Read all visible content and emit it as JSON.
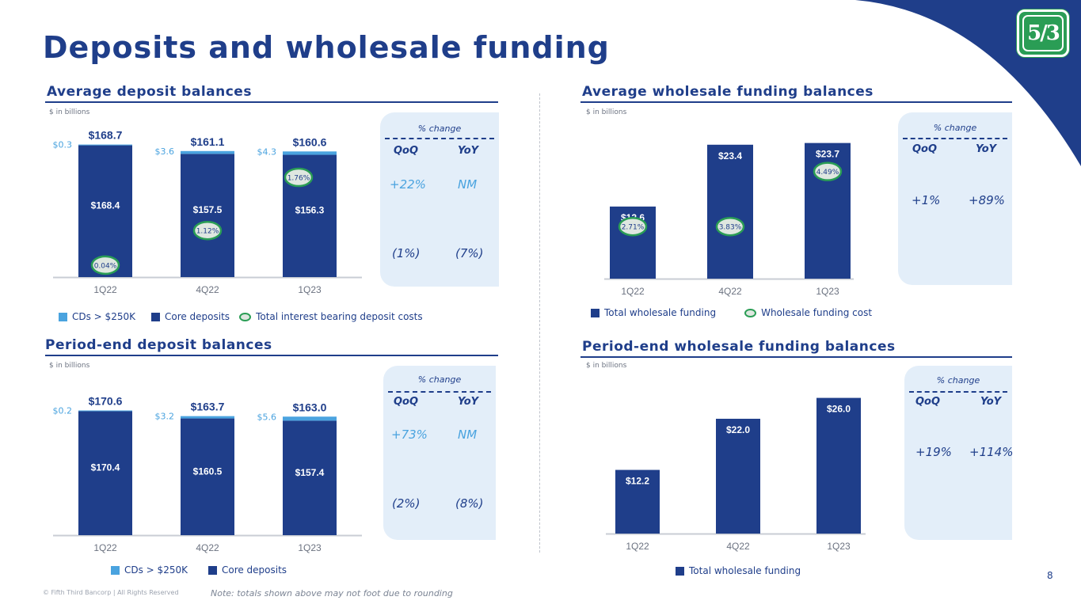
{
  "title": "Deposits and wholesale funding",
  "footer": "© Fifth Third Bancorp | All Rights Reserved",
  "note": "Note: totals shown above may not foot due to rounding",
  "page_number": "8",
  "logo_text": "5/3",
  "colors": {
    "navy": "#1f3e8a",
    "light_blue": "#4aa3df",
    "green": "#2a9d55",
    "oval_fill": "#dfe7e0",
    "box": "#e3eef9"
  },
  "chart_data": [
    {
      "id": "avg_deposits",
      "type": "bar",
      "stacked": true,
      "title": "Average deposit balances",
      "unit": "$ in billions",
      "categories": [
        "1Q22",
        "4Q22",
        "1Q23"
      ],
      "series": [
        {
          "name": "Core deposits",
          "values": [
            168.4,
            157.5,
            156.3
          ],
          "labels": [
            "$168.4",
            "$157.5",
            "$156.3"
          ]
        },
        {
          "name": "CDs > $250K",
          "values": [
            0.3,
            3.6,
            4.3
          ],
          "labels": [
            "$0.3",
            "$3.6",
            "$4.3"
          ]
        }
      ],
      "totals": [
        "$168.7",
        "$161.1",
        "$160.6"
      ],
      "rates_name": "Total interest bearing deposit costs",
      "rates": [
        "0.04%",
        "1.12%",
        "1.76%"
      ],
      "ylim": [
        0,
        170
      ],
      "legend": [
        "CDs > $250K",
        "Core deposits",
        "Total interest bearing deposit costs"
      ],
      "pct_change": {
        "header": "% change",
        "col1": "QoQ",
        "col2": "YoY",
        "row1": [
          "+22%",
          "NM"
        ],
        "row2": [
          "(1%)",
          "(7%)"
        ]
      }
    },
    {
      "id": "avg_wholesale",
      "type": "bar",
      "title": "Average wholesale funding balances",
      "unit": "$ in billions",
      "categories": [
        "1Q22",
        "4Q22",
        "1Q23"
      ],
      "series": [
        {
          "name": "Total wholesale funding",
          "values": [
            12.6,
            23.4,
            23.7
          ],
          "labels": [
            "$12.6",
            "$23.4",
            "$23.7"
          ]
        }
      ],
      "rates_name": "Wholesale funding cost",
      "rates": [
        "2.71%",
        "3.83%",
        "4.49%"
      ],
      "ylim": [
        0,
        26
      ],
      "legend": [
        "Total wholesale funding",
        "Wholesale funding cost"
      ],
      "pct_change": {
        "header": "% change",
        "col1": "QoQ",
        "col2": "YoY",
        "row1": [
          "+1%",
          "+89%"
        ]
      }
    },
    {
      "id": "pe_deposits",
      "type": "bar",
      "stacked": true,
      "title": "Period-end deposit balances",
      "unit": "$ in billions",
      "categories": [
        "1Q22",
        "4Q22",
        "1Q23"
      ],
      "series": [
        {
          "name": "Core deposits",
          "values": [
            170.4,
            160.5,
            157.4
          ],
          "labels": [
            "$170.4",
            "$160.5",
            "$157.4"
          ]
        },
        {
          "name": "CDs > $250K",
          "values": [
            0.2,
            3.2,
            5.6
          ],
          "labels": [
            "$0.2",
            "$3.2",
            "$5.6"
          ]
        }
      ],
      "totals": [
        "$170.6",
        "$163.7",
        "$163.0"
      ],
      "ylim": [
        0,
        172
      ],
      "legend": [
        "CDs > $250K",
        "Core deposits"
      ],
      "pct_change": {
        "header": "% change",
        "col1": "QoQ",
        "col2": "YoY",
        "row1": [
          "+73%",
          "NM"
        ],
        "row2": [
          "(2%)",
          "(8%)"
        ]
      }
    },
    {
      "id": "pe_wholesale",
      "type": "bar",
      "title": "Period-end wholesale funding balances",
      "unit": "$ in billions",
      "categories": [
        "1Q22",
        "4Q22",
        "1Q23"
      ],
      "series": [
        {
          "name": "Total wholesale funding",
          "values": [
            12.2,
            22.0,
            26.0
          ],
          "labels": [
            "$12.2",
            "$22.0",
            "$26.0"
          ]
        }
      ],
      "ylim": [
        0,
        27
      ],
      "legend": [
        "Total wholesale funding"
      ],
      "pct_change": {
        "header": "% change",
        "col1": "QoQ",
        "col2": "YoY",
        "row1": [
          "+19%",
          "+114%"
        ]
      }
    }
  ]
}
